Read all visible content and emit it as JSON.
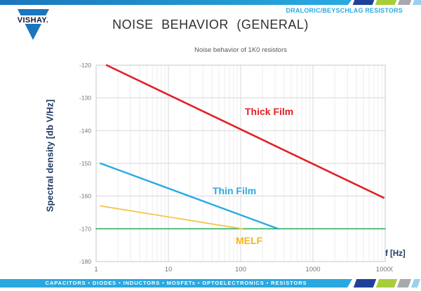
{
  "header": {
    "logo_text": "VISHAY.",
    "doc_label": "DRALORIC/BEYSCHLAG RESISTORS",
    "title": "NOISE BEHAVIOR (GENERAL)"
  },
  "footer": {
    "text": "CAPACITORS • DIODES • INDUCTORS • MOSFETs • OPTOELECTRONICS • RESISTORS"
  },
  "colors": {
    "bar_blue": "#1b76bd",
    "light_blue": "#29abe2",
    "navy": "#21409a",
    "lime": "#a6ce39",
    "gray": "#a7a9ac",
    "pale_blue": "#9ad0ee",
    "axis_title_navy": "#1f3864",
    "grid_major": "#d8d8d8",
    "grid_minor": "#ededed"
  },
  "chart_data": {
    "type": "line",
    "title": "Noise behavior of 1K0 resistors",
    "xlabel": "f [Hz]",
    "ylabel": "Spectral density [db V/Hz]",
    "x_scale": "log",
    "xlim": [
      1,
      10000
    ],
    "ylim": [
      -180,
      -120
    ],
    "xticks": [
      1,
      10,
      100,
      1000,
      10000
    ],
    "yticks": [
      -120,
      -130,
      -140,
      -150,
      -160,
      -170,
      -180
    ],
    "grid": true,
    "legend_position": "inline-labels",
    "series": [
      {
        "name": "Thick Film",
        "color": "#e11f26",
        "width": 2.6,
        "points": [
          [
            1.4,
            -120
          ],
          [
            9500,
            -160.5
          ]
        ]
      },
      {
        "name": "Thin Film",
        "color": "#29abe2",
        "width": 2.4,
        "points": [
          [
            1.15,
            -150
          ],
          [
            330,
            -170
          ]
        ]
      },
      {
        "name": "MELF",
        "color": "#f3c64b",
        "label_color": "#f7b513",
        "width": 1.8,
        "points": [
          [
            1.15,
            -163
          ],
          [
            105,
            -170
          ]
        ]
      },
      {
        "name": "",
        "color": "#2eb261",
        "width": 1.6,
        "points": [
          [
            1,
            -170
          ],
          [
            10000,
            -170
          ]
        ]
      }
    ]
  }
}
